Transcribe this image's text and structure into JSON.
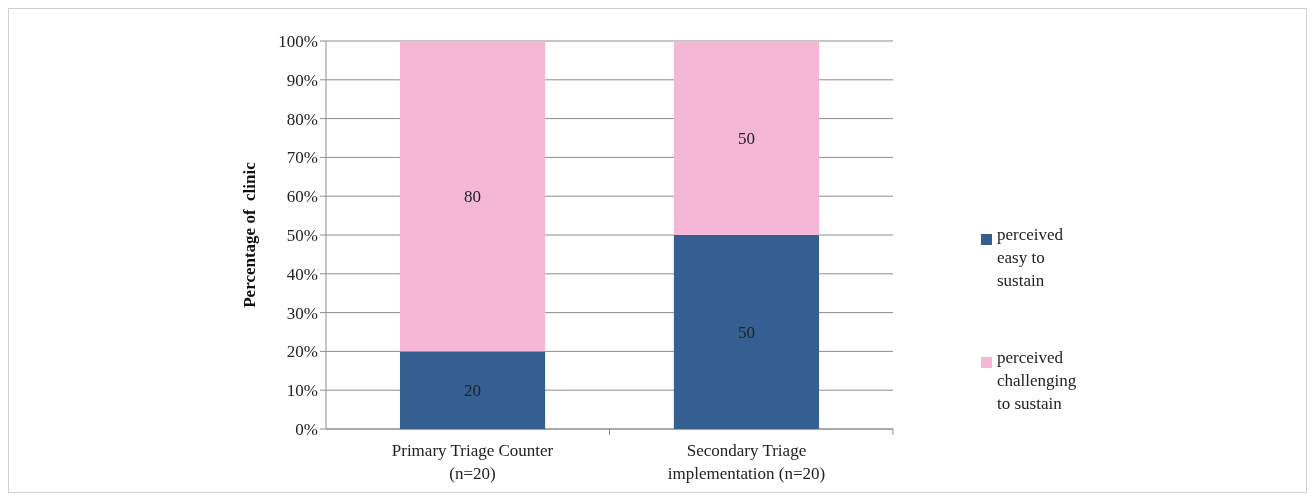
{
  "chart_data": {
    "type": "bar",
    "stacked": true,
    "ylabel": "Percentage of  clinic",
    "categories": [
      "Primary Triage Counter (n=20)",
      "Secondary Triage implementation (n=20)"
    ],
    "series": [
      {
        "name": "perceived easy to sustain",
        "color": "#355f91",
        "values": [
          20,
          50
        ]
      },
      {
        "name": "perceived challenging to sustain",
        "color": "#f4b8d6",
        "values": [
          80,
          50
        ]
      }
    ],
    "ylim": [
      0,
      100
    ],
    "yticks": [
      {
        "value": 0,
        "label": "0%"
      },
      {
        "value": 10,
        "label": "10%"
      },
      {
        "value": 20,
        "label": "20%"
      },
      {
        "value": 30,
        "label": "30%"
      },
      {
        "value": 40,
        "label": "40%"
      },
      {
        "value": 50,
        "label": "50%"
      },
      {
        "value": 60,
        "label": "60%"
      },
      {
        "value": 70,
        "label": "70%"
      },
      {
        "value": 80,
        "label": "80%"
      },
      {
        "value": 90,
        "label": "90%"
      },
      {
        "value": 100,
        "label": "100%"
      }
    ],
    "grid": "y",
    "legend": "right",
    "data_labels": true
  }
}
